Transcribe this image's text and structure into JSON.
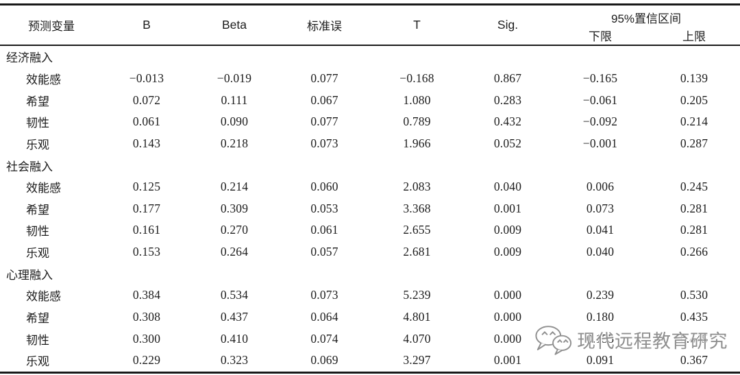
{
  "table": {
    "header": {
      "predictor": "预测变量",
      "b": "B",
      "beta": "Beta",
      "se": "标准误",
      "t": "T",
      "sig": "Sig.",
      "ci": "95%置信区间",
      "ci_lower": "下限",
      "ci_upper": "上限"
    },
    "sections": [
      {
        "name": "经济融入",
        "rows": [
          {
            "label": "效能感",
            "values": [
              "−0.013",
              "−0.019",
              "0.077",
              "−0.168",
              "0.867",
              "−0.165",
              "0.139"
            ]
          },
          {
            "label": "希望",
            "values": [
              "0.072",
              "0.111",
              "0.067",
              "1.080",
              "0.283",
              "−0.061",
              "0.205"
            ]
          },
          {
            "label": "韧性",
            "values": [
              "0.061",
              "0.090",
              "0.077",
              "0.789",
              "0.432",
              "−0.092",
              "0.214"
            ]
          },
          {
            "label": "乐观",
            "values": [
              "0.143",
              "0.218",
              "0.073",
              "1.966",
              "0.052",
              "−0.001",
              "0.287"
            ]
          }
        ]
      },
      {
        "name": "社会融入",
        "rows": [
          {
            "label": "效能感",
            "values": [
              "0.125",
              "0.214",
              "0.060",
              "2.083",
              "0.040",
              "0.006",
              "0.245"
            ]
          },
          {
            "label": "希望",
            "values": [
              "0.177",
              "0.309",
              "0.053",
              "3.368",
              "0.001",
              "0.073",
              "0.281"
            ]
          },
          {
            "label": "韧性",
            "values": [
              "0.161",
              "0.270",
              "0.061",
              "2.655",
              "0.009",
              "0.041",
              "0.281"
            ]
          },
          {
            "label": "乐观",
            "values": [
              "0.153",
              "0.264",
              "0.057",
              "2.681",
              "0.009",
              "0.040",
              "0.266"
            ]
          }
        ]
      },
      {
        "name": "心理融入",
        "rows": [
          {
            "label": "效能感",
            "values": [
              "0.384",
              "0.534",
              "0.073",
              "5.239",
              "0.000",
              "0.239",
              "0.530"
            ]
          },
          {
            "label": "希望",
            "values": [
              "0.308",
              "0.437",
              "0.064",
              "4.801",
              "0.000",
              "0.180",
              "0.435"
            ]
          },
          {
            "label": "韧性",
            "values": [
              "0.300",
              "0.410",
              "0.074",
              "4.070",
              "0.000",
              "0.155",
              "0.445"
            ]
          },
          {
            "label": "乐观",
            "values": [
              "0.229",
              "0.323",
              "0.069",
              "3.297",
              "0.001",
              "0.091",
              "0.367"
            ]
          }
        ]
      }
    ]
  },
  "watermark": {
    "text": "现代远程教育研究",
    "icon": "wechat-chat-bubbles",
    "color": "#8f8f8f"
  }
}
